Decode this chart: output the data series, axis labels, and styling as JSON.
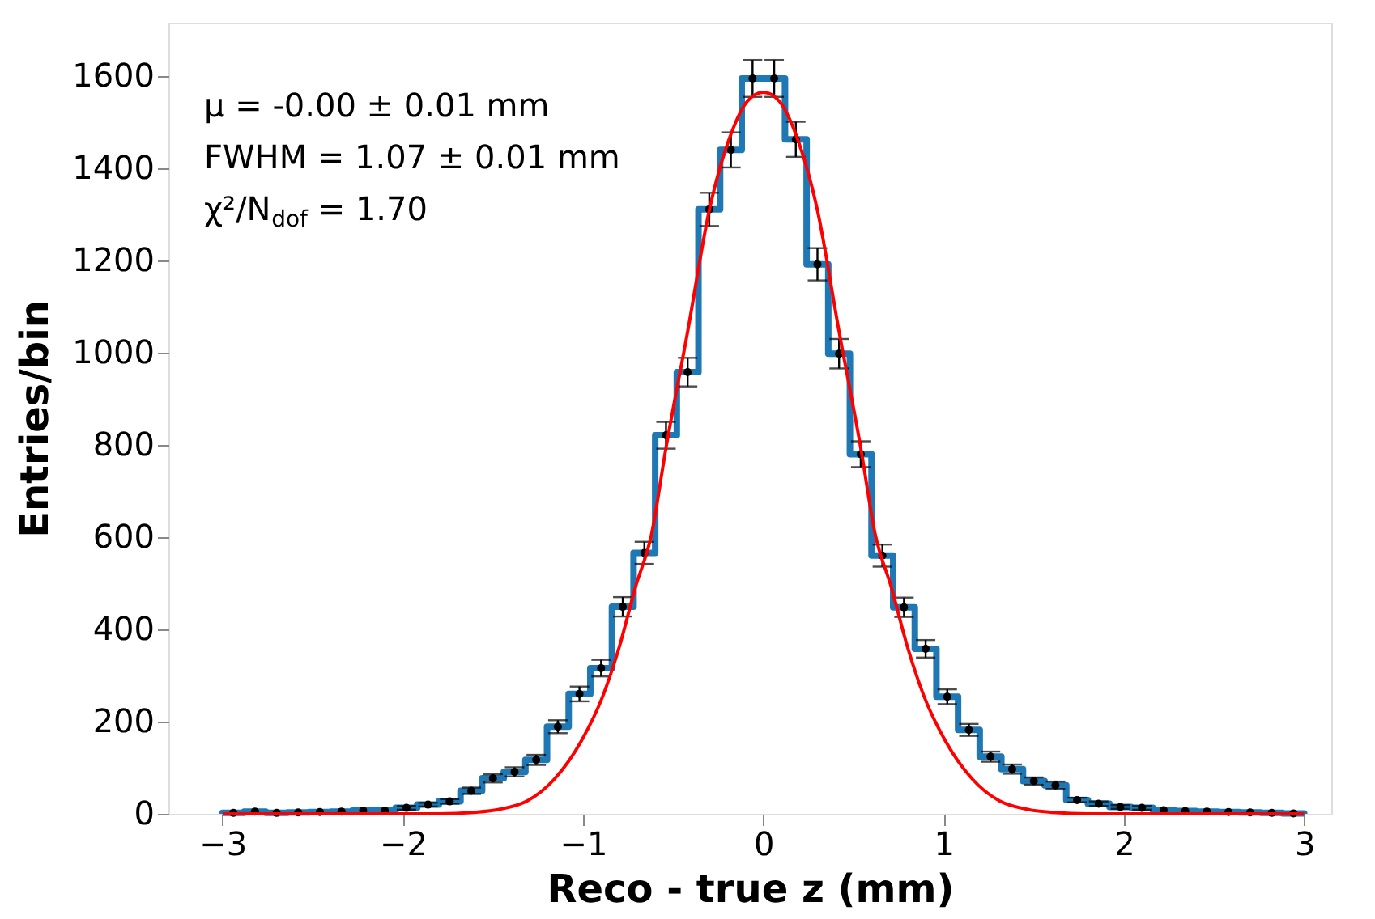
{
  "chart_data": {
    "type": "histogram",
    "xlabel": "Reco - true z (mm)",
    "ylabel": "Entries/bin",
    "annotations": [
      "μ = -0.00 ± 0.01 mm",
      "FWHM = 1.07 ± 0.01 mm",
      "χ²/N$_{dof}$ = 1.70"
    ],
    "bins": [
      -3,
      -2.88,
      -2.76,
      -2.64,
      -2.52,
      -2.4,
      -2.28,
      -2.16,
      -2.04,
      -1.92,
      -1.8,
      -1.68,
      -1.56,
      -1.44,
      -1.32,
      -1.2,
      -1.08,
      -0.96,
      -0.84,
      -0.72,
      -0.6,
      -0.48,
      -0.36,
      -0.24,
      -0.12,
      0,
      0.12,
      0.24,
      0.36,
      0.48,
      0.6,
      0.72,
      0.84,
      0.96,
      1.08,
      1.2,
      1.32,
      1.44,
      1.56,
      1.68,
      1.8,
      1.92,
      2.04,
      2.16,
      2.28,
      2.4,
      2.52,
      2.64,
      2.76,
      2.88,
      3
    ],
    "series": [
      {
        "type": "histogram",
        "color": "#1f77b4",
        "values": [
          2,
          5,
          2,
          3,
          4,
          5,
          7,
          7,
          13,
          20,
          27,
          50,
          77,
          91,
          117,
          189,
          260,
          316,
          449,
          566,
          821,
          958,
          1311,
          1440,
          1595,
          1595,
          1463,
          1192,
          998,
          780,
          560,
          448,
          358,
          254,
          182,
          124,
          97,
          71,
          62,
          30,
          22,
          15,
          13,
          8,
          6,
          5,
          4,
          3,
          2,
          1
        ]
      },
      {
        "type": "scatter",
        "color": "#000000",
        "marker": "circle",
        "x": [
          -2.94,
          -2.82,
          -2.7,
          -2.58,
          -2.46,
          -2.34,
          -2.22,
          -2.1,
          -1.98,
          -1.86,
          -1.74,
          -1.62,
          -1.5,
          -1.38,
          -1.26,
          -1.14,
          -1.02,
          -0.9,
          -0.78,
          -0.66,
          -0.54,
          -0.42,
          -0.3,
          -0.18,
          -0.06,
          0.06,
          0.18,
          0.3,
          0.42,
          0.54,
          0.66,
          0.78,
          0.9,
          1.02,
          1.14,
          1.26,
          1.38,
          1.5,
          1.62,
          1.74,
          1.86,
          1.98,
          2.1,
          2.22,
          2.34,
          2.46,
          2.58,
          2.7,
          2.82,
          2.94
        ],
        "values": [
          2,
          5,
          2,
          3,
          4,
          5,
          7,
          7,
          13,
          20,
          27,
          50,
          77,
          91,
          117,
          189,
          260,
          316,
          449,
          566,
          821,
          958,
          1311,
          1440,
          1595,
          1595,
          1463,
          1192,
          998,
          780,
          560,
          448,
          358,
          254,
          182,
          124,
          97,
          71,
          62,
          30,
          22,
          15,
          13,
          8,
          6,
          5,
          4,
          3,
          2,
          1
        ],
        "errors": [
          null,
          null,
          null,
          null,
          null,
          null,
          null,
          null,
          4,
          4,
          5,
          7,
          9,
          10,
          11,
          14,
          16,
          18,
          21,
          24,
          29,
          31,
          36,
          38,
          40,
          40,
          38,
          35,
          32,
          28,
          24,
          21,
          19,
          16,
          13,
          11,
          10,
          8,
          8,
          5,
          5,
          4,
          4,
          null,
          null,
          null,
          null,
          null,
          null,
          null
        ]
      },
      {
        "type": "line",
        "color": "#ff0000",
        "x": [
          -3,
          -1.8,
          -1.61,
          -1.46,
          -1.31,
          -1.16,
          -1.01,
          -0.89,
          -0.8,
          -0.71,
          -0.62,
          -0.54,
          -0.42,
          -0.3,
          -0.18,
          -0.09,
          0,
          0.09,
          0.18,
          0.3,
          0.42,
          0.54,
          0.62,
          0.71,
          0.8,
          0.89,
          1.01,
          1.16,
          1.31,
          1.46,
          1.61,
          1.8,
          3
        ],
        "values": [
          0,
          0,
          3,
          10,
          28,
          75,
          158,
          256,
          361,
          491,
          607,
          794,
          1046,
          1309,
          1474,
          1545,
          1565,
          1545,
          1474,
          1309,
          1046,
          794,
          607,
          491,
          361,
          256,
          158,
          75,
          28,
          10,
          3,
          0,
          0
        ]
      }
    ],
    "xlim": [
      -3.3,
      3.15
    ],
    "xticks": [
      -3,
      -2,
      -1,
      0,
      1,
      2,
      3
    ],
    "ylim": [
      0,
      1716
    ],
    "yticks": [
      0,
      200,
      400,
      600,
      800,
      1000,
      1200,
      1400,
      1600
    ],
    "grid": false
  }
}
